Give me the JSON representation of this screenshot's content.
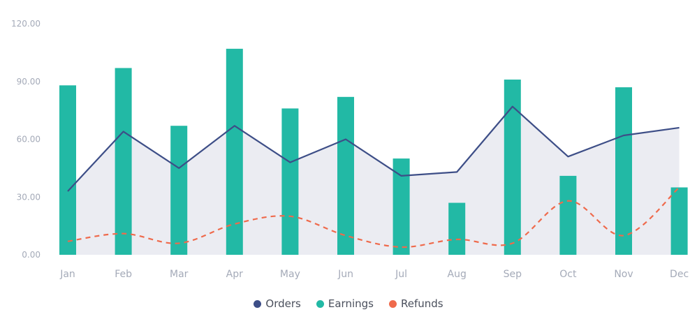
{
  "chart_data": {
    "type": "bar",
    "categories": [
      "Jan",
      "Feb",
      "Mar",
      "Apr",
      "May",
      "Jun",
      "Jul",
      "Aug",
      "Sep",
      "Oct",
      "Nov",
      "Dec"
    ],
    "ylim": [
      0,
      120
    ],
    "y_ticks": [
      "0.00",
      "30.00",
      "60.00",
      "90.00",
      "120.00"
    ],
    "y_tick_values": [
      0,
      30,
      60,
      90,
      120
    ],
    "grid": false,
    "legend_position": "bottom",
    "series": [
      {
        "name": "Orders",
        "render": "area-line",
        "color": "#3d4e87",
        "fill": "#ebecf2",
        "values": [
          33,
          64,
          45,
          67,
          48,
          60,
          41,
          43,
          77,
          51,
          62,
          66
        ]
      },
      {
        "name": "Earnings",
        "render": "bar",
        "color": "#22b9a5",
        "values": [
          88,
          97,
          67,
          107,
          76,
          82,
          50,
          27,
          91,
          41,
          87,
          35
        ]
      },
      {
        "name": "Refunds",
        "render": "dashed-line",
        "color": "#ef6a4c",
        "values": [
          7,
          11,
          6,
          16,
          20,
          10,
          4,
          8,
          6,
          28,
          10,
          35
        ]
      }
    ]
  },
  "legend": {
    "items": [
      {
        "label": "Orders",
        "color": "#3d4e87"
      },
      {
        "label": "Earnings",
        "color": "#22b9a5"
      },
      {
        "label": "Refunds",
        "color": "#ef6a4c"
      }
    ]
  }
}
